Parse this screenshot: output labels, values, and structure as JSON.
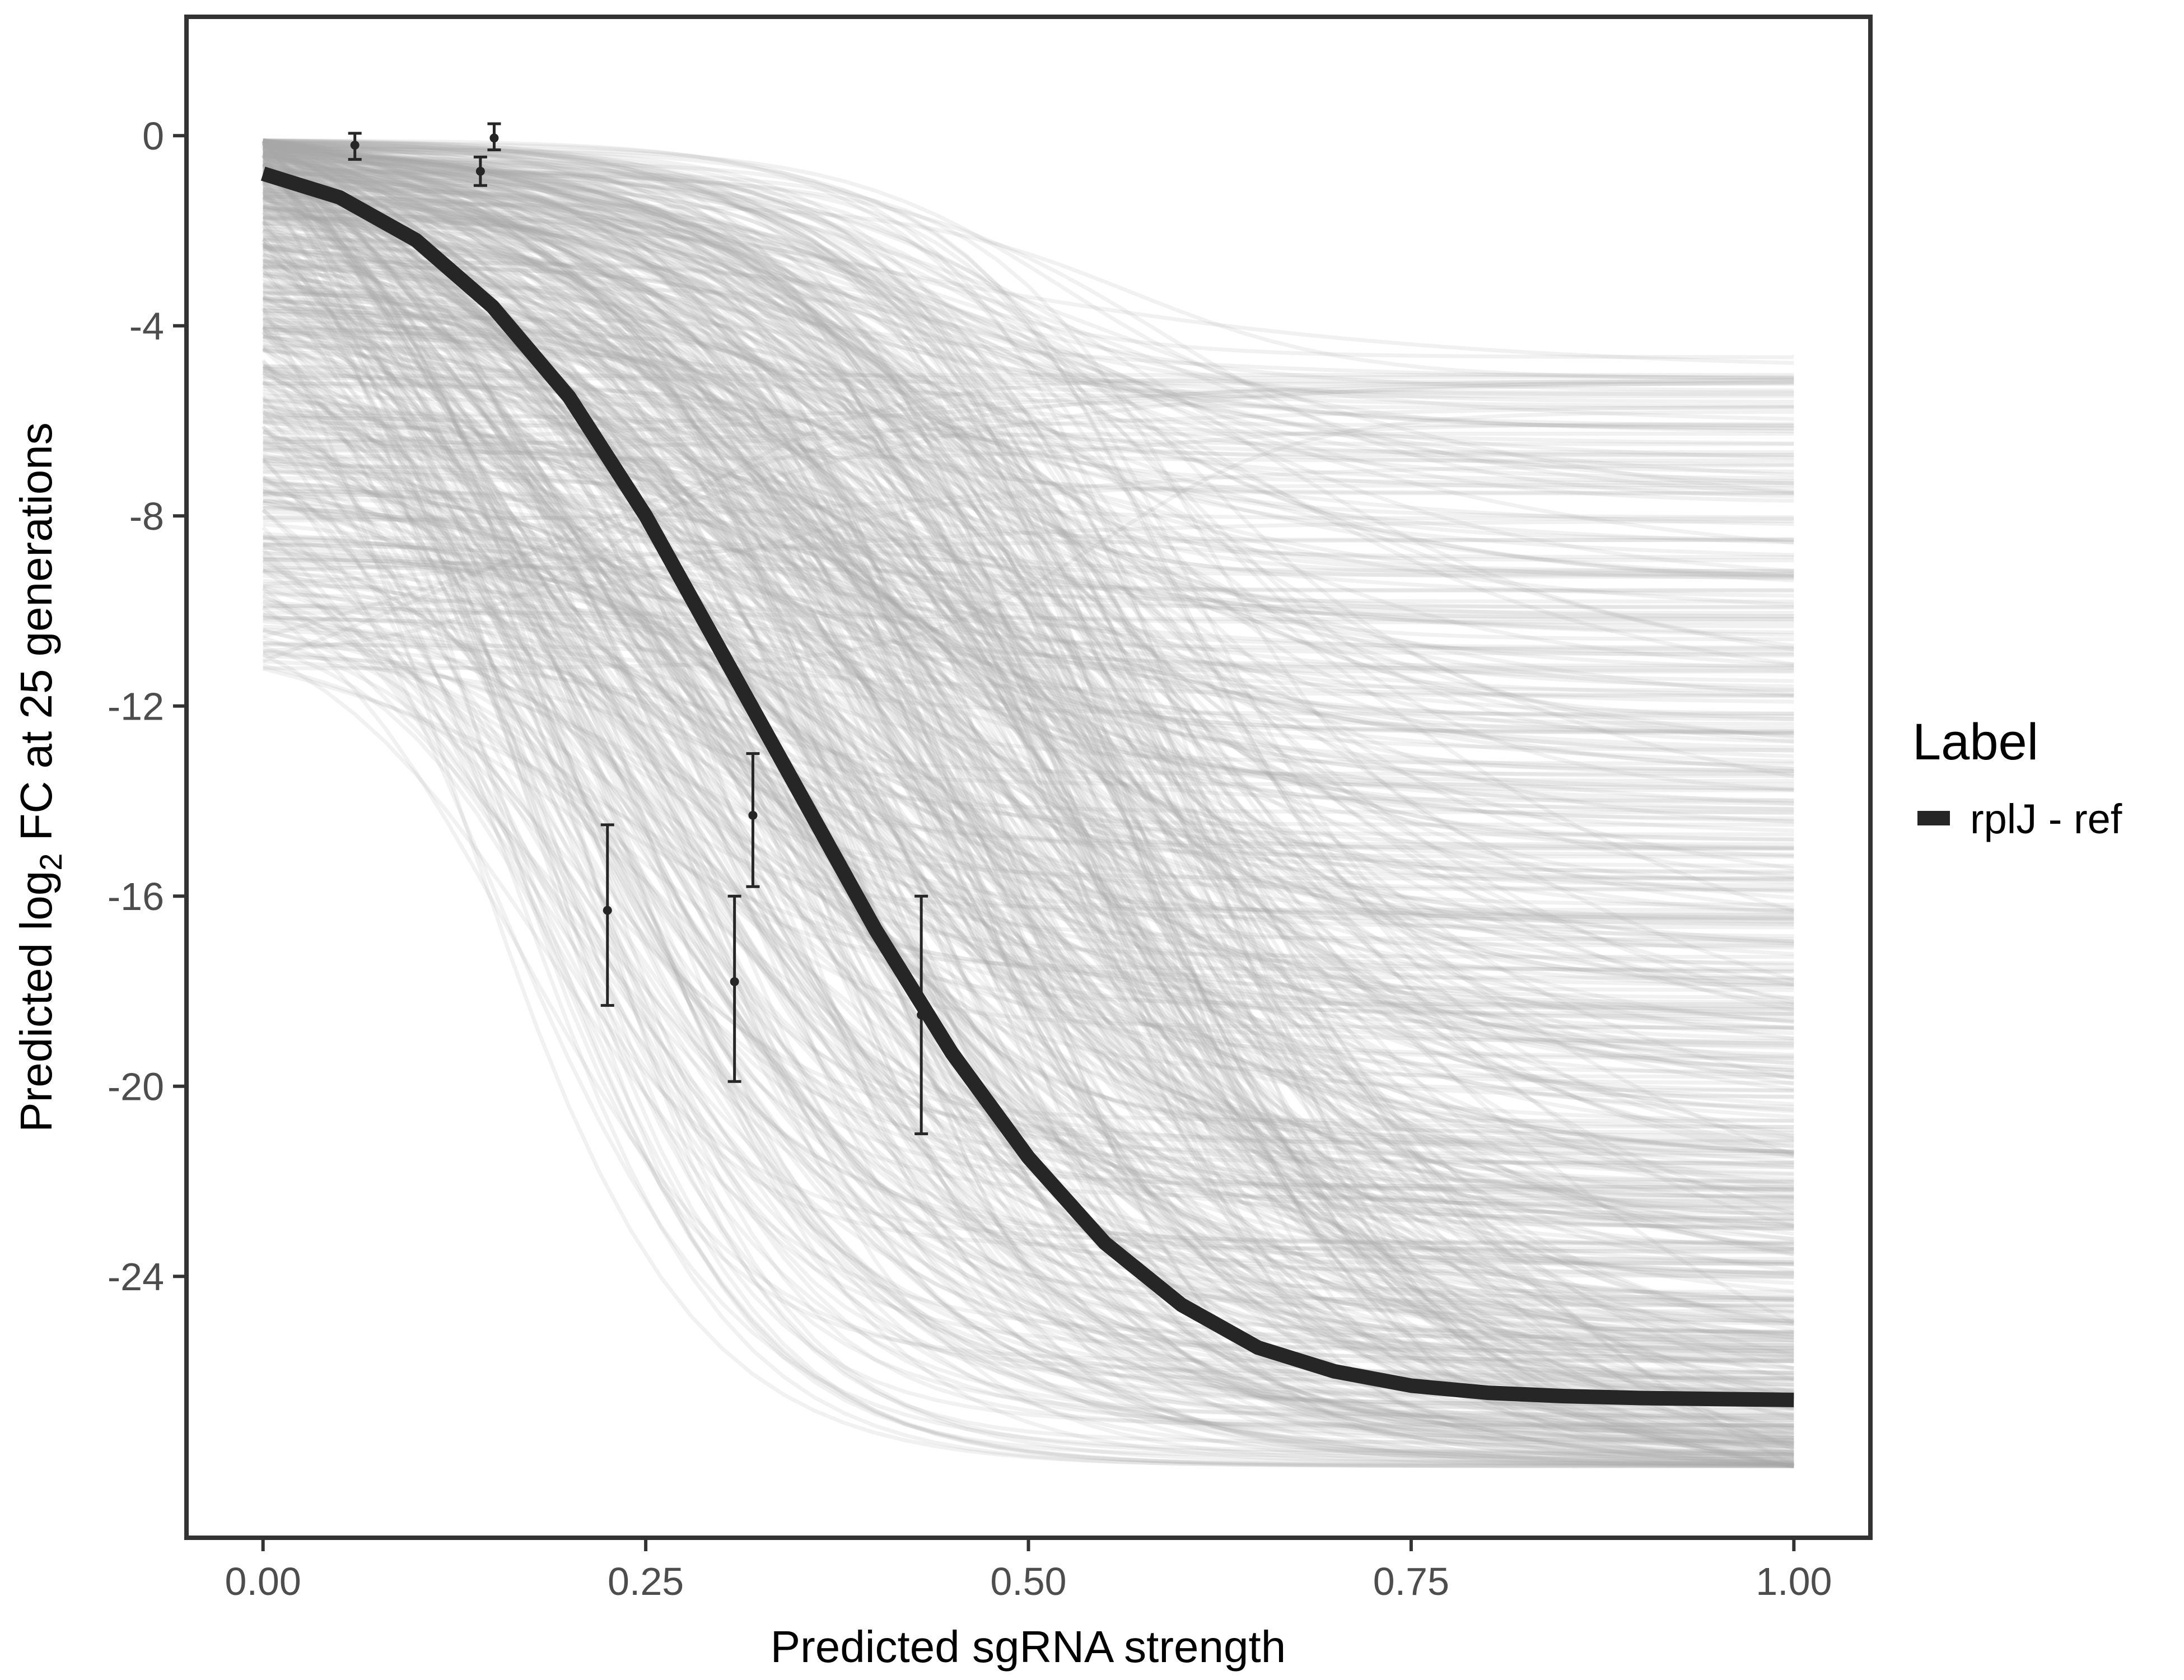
{
  "chart_data": {
    "type": "line",
    "title": "",
    "xlabel": "Predicted sgRNA strength",
    "ylabel_parts": [
      "Predicted  log",
      "2",
      " FC at 25 generations"
    ],
    "xlim": [
      -0.05,
      1.05
    ],
    "ylim": [
      -29.5,
      2.5
    ],
    "x_ticks": [
      0.0,
      0.25,
      0.5,
      0.75,
      1.0
    ],
    "x_tick_labels": [
      "0.00",
      "0.25",
      "0.50",
      "0.75",
      "1.00"
    ],
    "y_ticks": [
      0,
      -4,
      -8,
      -12,
      -16,
      -20,
      -24
    ],
    "y_tick_labels": [
      "0",
      "-4",
      "-8",
      "-12",
      "-16",
      "-20",
      "-24"
    ],
    "grid": false,
    "legend": {
      "title": "Label",
      "position": "right",
      "entries": [
        {
          "label": "rplJ - ref",
          "color": "#262626"
        }
      ]
    },
    "main_curve": {
      "name": "rplJ - ref",
      "color": "#262626",
      "x": [
        0.0,
        0.05,
        0.1,
        0.15,
        0.2,
        0.25,
        0.3,
        0.35,
        0.4,
        0.45,
        0.5,
        0.55,
        0.6,
        0.65,
        0.7,
        0.75,
        0.8,
        0.85,
        0.9,
        0.95,
        1.0
      ],
      "y": [
        -0.8,
        -1.3,
        -2.2,
        -3.6,
        -5.5,
        -8.0,
        -10.9,
        -13.8,
        -16.7,
        -19.3,
        -21.5,
        -23.3,
        -24.6,
        -25.5,
        -26.0,
        -26.3,
        -26.45,
        -26.52,
        -26.56,
        -26.58,
        -26.6
      ]
    },
    "observations": {
      "color": "#262626",
      "points": [
        {
          "x": 0.06,
          "y": -0.2,
          "ymin": -0.5,
          "ymax": 0.05
        },
        {
          "x": 0.142,
          "y": -0.75,
          "ymin": -1.05,
          "ymax": -0.45
        },
        {
          "x": 0.151,
          "y": -0.05,
          "ymin": -0.3,
          "ymax": 0.25
        },
        {
          "x": 0.225,
          "y": -16.3,
          "ymin": -18.3,
          "ymax": -14.5
        },
        {
          "x": 0.308,
          "y": -17.8,
          "ymin": -19.9,
          "ymax": -16.0
        },
        {
          "x": 0.32,
          "y": -14.3,
          "ymin": -15.8,
          "ymax": -13.0
        },
        {
          "x": 0.43,
          "y": -18.5,
          "ymin": -21.0,
          "ymax": -16.0
        }
      ]
    },
    "posterior_draws": {
      "description_count": 600,
      "color": "#a6a6a6",
      "x_range": [
        0.0,
        1.0
      ],
      "initial_y_range": [
        -11.8,
        -0.1
      ],
      "final_y_range": [
        -28.0,
        -4.6
      ],
      "lower_floor": -28.0
    }
  },
  "colors": {
    "background": "#ffffff",
    "panel_border": "#333333",
    "tick_text": "#4d4d4d",
    "draw_line": "#a6a6a6",
    "main_line": "#262626"
  }
}
